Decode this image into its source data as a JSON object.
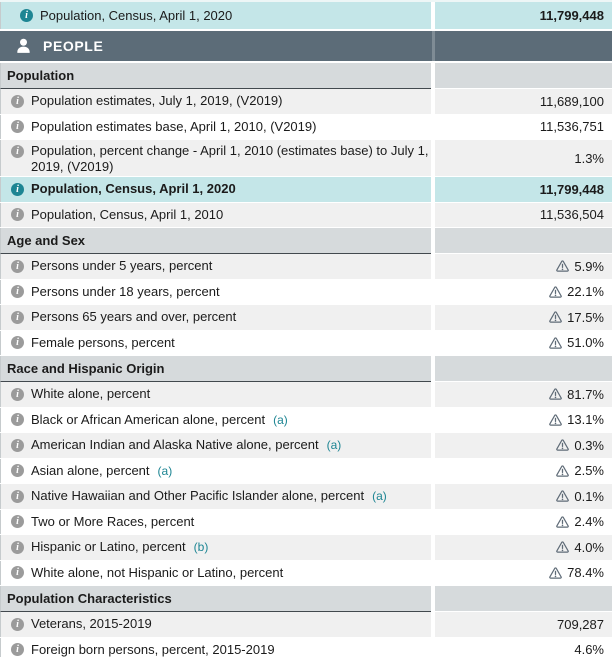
{
  "colors": {
    "highlight_teal": "#c4e6e8",
    "band_slate": "#5c6c78",
    "link_teal": "#1d8593",
    "section_header_gray": "#d6dadc",
    "row_gray": "#f0f0f0",
    "warning_gray": "#5f6b77"
  },
  "top_row": {
    "label": "Population, Census, April 1, 2020",
    "value": "11,799,448"
  },
  "people_band": {
    "label": "PEOPLE"
  },
  "sections": [
    {
      "title": "Population",
      "rows": [
        {
          "label": "Population estimates, July 1, 2019, (V2019)",
          "value": "11,689,100"
        },
        {
          "label": "Population estimates base, April 1, 2010, (V2019)",
          "value": "11,536,751"
        },
        {
          "label": "Population, percent change - April 1, 2010 (estimates base) to July 1, 2019, (V2019)",
          "value": "1.3%",
          "two_line": true
        },
        {
          "label": "Population, Census, April 1, 2020",
          "value": "11,799,448",
          "highlight": true
        },
        {
          "label": "Population, Census, April 1, 2010",
          "value": "11,536,504"
        }
      ]
    },
    {
      "title": "Age and Sex",
      "rows": [
        {
          "label": "Persons under 5 years, percent",
          "value": "5.9%",
          "warning": true
        },
        {
          "label": "Persons under 18 years, percent",
          "value": "22.1%",
          "warning": true
        },
        {
          "label": "Persons 65 years and over, percent",
          "value": "17.5%",
          "warning": true
        },
        {
          "label": "Female persons, percent",
          "value": "51.0%",
          "warning": true
        }
      ]
    },
    {
      "title": "Race and Hispanic Origin",
      "rows": [
        {
          "label": "White alone, percent",
          "value": "81.7%",
          "warning": true
        },
        {
          "label": "Black or African American alone, percent",
          "note": "(a)",
          "value": "13.1%",
          "warning": true
        },
        {
          "label": "American Indian and Alaska Native alone, percent",
          "note": "(a)",
          "value": "0.3%",
          "warning": true
        },
        {
          "label": "Asian alone, percent",
          "note": "(a)",
          "value": "2.5%",
          "warning": true
        },
        {
          "label": "Native Hawaiian and Other Pacific Islander alone, percent",
          "note": "(a)",
          "value": "0.1%",
          "warning": true
        },
        {
          "label": "Two or More Races, percent",
          "value": "2.4%",
          "warning": true
        },
        {
          "label": "Hispanic or Latino, percent",
          "note": "(b)",
          "value": "4.0%",
          "warning": true
        },
        {
          "label": "White alone, not Hispanic or Latino, percent",
          "value": "78.4%",
          "warning": true
        }
      ]
    },
    {
      "title": "Population Characteristics",
      "rows": [
        {
          "label": "Veterans, 2015-2019",
          "value": "709,287"
        },
        {
          "label": "Foreign born persons, percent, 2015-2019",
          "value": "4.6%"
        }
      ]
    }
  ]
}
